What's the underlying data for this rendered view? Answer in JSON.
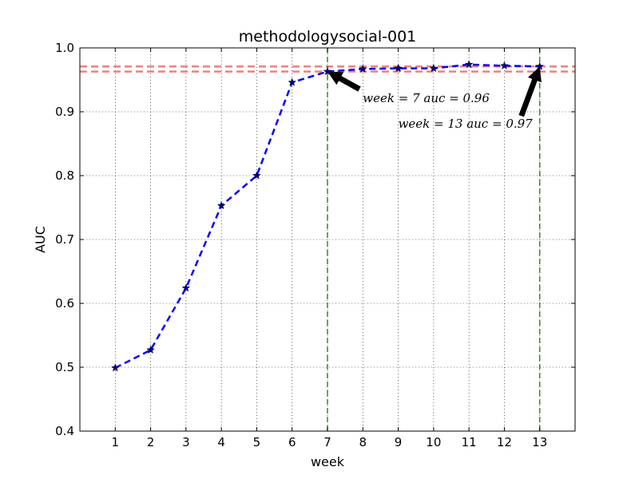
{
  "chart_data": {
    "type": "line",
    "title": "methodologysocial-001",
    "xlabel": "week",
    "ylabel": "AUC",
    "xlim": [
      0,
      14
    ],
    "ylim": [
      0.4,
      1.0
    ],
    "x_ticks": [
      1,
      2,
      3,
      4,
      5,
      6,
      7,
      8,
      9,
      10,
      11,
      12,
      13
    ],
    "y_ticks": [
      0.4,
      0.5,
      0.6,
      0.7,
      0.8,
      0.9,
      1.0
    ],
    "y_tick_labels": [
      "0.4",
      "0.5",
      "0.6",
      "0.7",
      "0.8",
      "0.9",
      "1.0"
    ],
    "grid": true,
    "series": [
      {
        "x": [
          1,
          2,
          3,
          4,
          5,
          6,
          7,
          8,
          9,
          10,
          11,
          12,
          13
        ],
        "values": [
          0.499,
          0.527,
          0.624,
          0.753,
          0.8,
          0.946,
          0.963,
          0.967,
          0.968,
          0.968,
          0.974,
          0.972,
          0.971
        ],
        "color": "#0000ff",
        "marker": "star",
        "linestyle": "dashed"
      }
    ],
    "reference_lines": {
      "horizontal": [
        {
          "y": 0.963,
          "color": "#f08080"
        },
        {
          "y": 0.971,
          "color": "#f08080"
        }
      ],
      "vertical": [
        {
          "x": 7,
          "color": "#2e8b2e"
        },
        {
          "x": 13,
          "color": "#2e8b2e"
        }
      ]
    },
    "annotations": [
      {
        "text": "week = 7  auc = 0.96",
        "x": 7,
        "y": 0.963,
        "text_x": 8.0,
        "text_y": 0.915
      },
      {
        "text": "week = 13  auc = 0.97",
        "x": 13,
        "y": 0.971,
        "text_x": 9.0,
        "text_y": 0.875
      }
    ]
  }
}
